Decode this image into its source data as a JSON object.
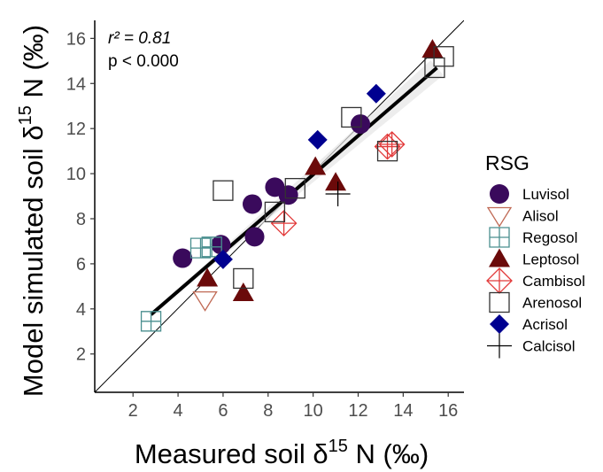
{
  "chart_data": {
    "type": "scatter",
    "title": "",
    "xlabel": {
      "prefix": "Measured soil δ",
      "sup": "15",
      "suffix": " N (‰)"
    },
    "ylabel": {
      "prefix": "Model simulated soil δ",
      "sup": "15",
      "suffix": " N (‰)"
    },
    "xlim": [
      0.3,
      16.7
    ],
    "ylim": [
      0.3,
      16.8
    ],
    "xticks": [
      2,
      4,
      6,
      8,
      10,
      12,
      14,
      16
    ],
    "yticks": [
      2,
      4,
      6,
      8,
      10,
      12,
      14,
      16
    ],
    "grid": false,
    "legend_position": "right",
    "annotation": {
      "r2_label": "r² = 0.81",
      "p_label": "p < 0.000"
    },
    "reference_line": {
      "type": "1:1",
      "from": [
        0.3,
        0.3
      ],
      "to": [
        16.7,
        16.8
      ],
      "color": "#000000"
    },
    "fit_line": {
      "from": [
        2.8,
        3.75
      ],
      "to": [
        15.5,
        14.7
      ],
      "color": "#000000"
    },
    "legend_title": "RSG",
    "series": [
      {
        "name": "Luvisol",
        "marker": "circle",
        "color": "#3a0a5c",
        "points": [
          [
            4.2,
            6.25
          ],
          [
            5.9,
            6.85
          ],
          [
            7.3,
            8.65
          ],
          [
            7.4,
            7.2
          ],
          [
            8.3,
            9.4
          ],
          [
            8.9,
            9.05
          ],
          [
            12.1,
            12.2
          ]
        ]
      },
      {
        "name": "Alisol",
        "marker": "triangle-down-open",
        "color": "#c06a55",
        "points": [
          [
            5.2,
            4.4
          ]
        ]
      },
      {
        "name": "Regosol",
        "marker": "square-plus",
        "color": "#4a8f8f",
        "points": [
          [
            2.8,
            3.45
          ],
          [
            5.0,
            6.7
          ],
          [
            5.5,
            6.75
          ]
        ]
      },
      {
        "name": "Leptosol",
        "marker": "triangle-up",
        "color": "#6b0a0a",
        "points": [
          [
            5.3,
            5.35
          ],
          [
            6.9,
            4.7
          ],
          [
            10.1,
            10.3
          ],
          [
            11.0,
            9.6
          ],
          [
            15.3,
            15.5
          ]
        ]
      },
      {
        "name": "Cambisol",
        "marker": "diamond-plus",
        "color": "#e23a3a",
        "points": [
          [
            8.7,
            7.8
          ],
          [
            13.3,
            11.2
          ],
          [
            13.5,
            11.3
          ]
        ]
      },
      {
        "name": "Arenosol",
        "marker": "square-open",
        "color": "#333333",
        "points": [
          [
            6.0,
            9.25
          ],
          [
            6.9,
            5.35
          ],
          [
            8.3,
            8.3
          ],
          [
            9.2,
            9.35
          ],
          [
            11.7,
            12.5
          ],
          [
            13.3,
            11.0
          ],
          [
            15.4,
            14.7
          ],
          [
            15.8,
            15.2
          ]
        ]
      },
      {
        "name": "Acrisol",
        "marker": "diamond",
        "color": "#000090",
        "points": [
          [
            6.0,
            6.2
          ],
          [
            10.2,
            11.5
          ],
          [
            12.8,
            13.55
          ]
        ]
      },
      {
        "name": "Calcisol",
        "marker": "plus",
        "color": "#000000",
        "points": [
          [
            11.1,
            9.1
          ]
        ]
      }
    ]
  }
}
